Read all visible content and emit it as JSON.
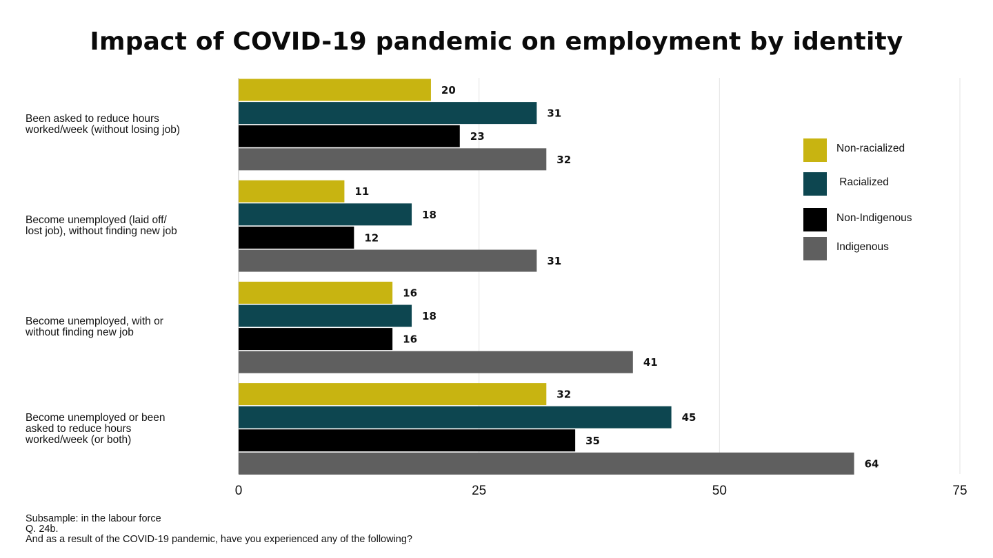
{
  "chart_data": {
    "type": "bar",
    "orientation": "horizontal",
    "title": "Impact of COVID-19 pandemic on employment by identity",
    "categories": [
      "Been asked to reduce hours\nworked/week (without losing job)",
      "Become unemployed (laid off/\nlost job), without finding new job",
      "Become unemployed, with or\nwithout finding new job",
      "Become unemployed or been\nasked to reduce hours\nworked/week (or both)"
    ],
    "series": [
      {
        "name": "Non-racialized",
        "color": "#c8b411",
        "values": [
          20,
          11,
          16,
          32
        ]
      },
      {
        "name": " Racialized",
        "color": "#0d4650",
        "values": [
          31,
          18,
          18,
          45
        ]
      },
      {
        "name": "Non-Indigenous",
        "color": "#000000",
        "values": [
          23,
          12,
          16,
          35
        ]
      },
      {
        "name": "Indigenous",
        "color": "#5f5f5f",
        "values": [
          32,
          31,
          41,
          64
        ]
      }
    ],
    "xlim": [
      0,
      75
    ],
    "xticks": [
      0,
      25,
      50,
      75
    ],
    "grid": true,
    "legend_position": "right"
  },
  "footnote": [
    "Subsample: in the labour force",
    "Q. 24b.",
    "And as a result of the COVID-19 pandemic, have you experienced any of the following?"
  ]
}
